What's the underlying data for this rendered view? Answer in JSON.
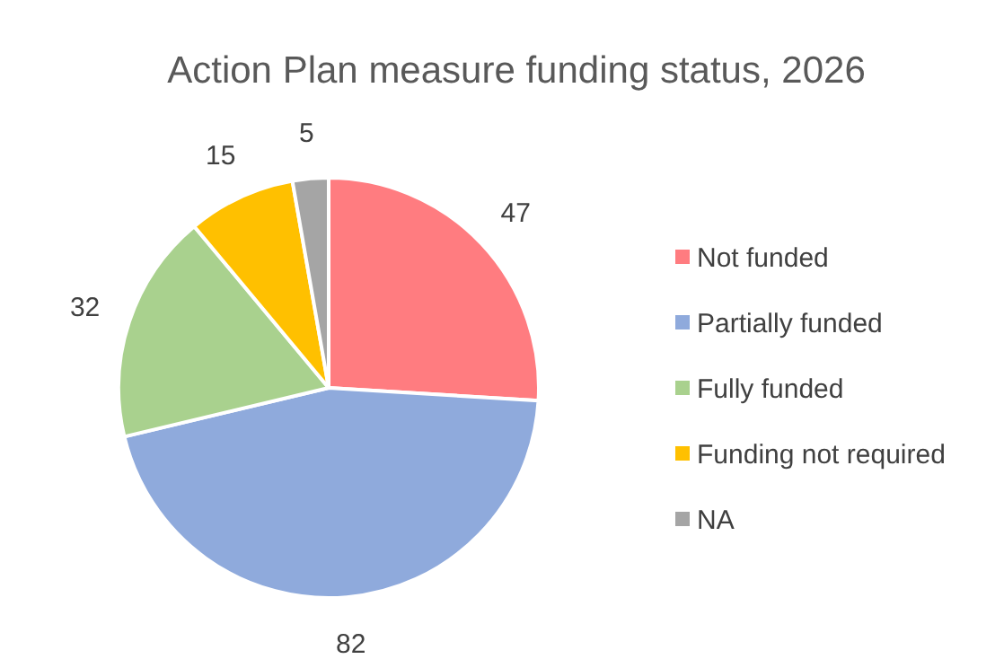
{
  "chart_data": {
    "type": "pie",
    "title": "Action Plan measure funding status, 2026",
    "categories": [
      "Not funded",
      "Partially funded",
      "Fully funded",
      "Funding not required",
      "NA"
    ],
    "values": [
      47,
      82,
      32,
      15,
      5
    ],
    "colors": [
      "#ff7c80",
      "#8faadc",
      "#a9d18e",
      "#ffc000",
      "#a5a5a5"
    ],
    "data_labels": true,
    "legend": "right"
  }
}
